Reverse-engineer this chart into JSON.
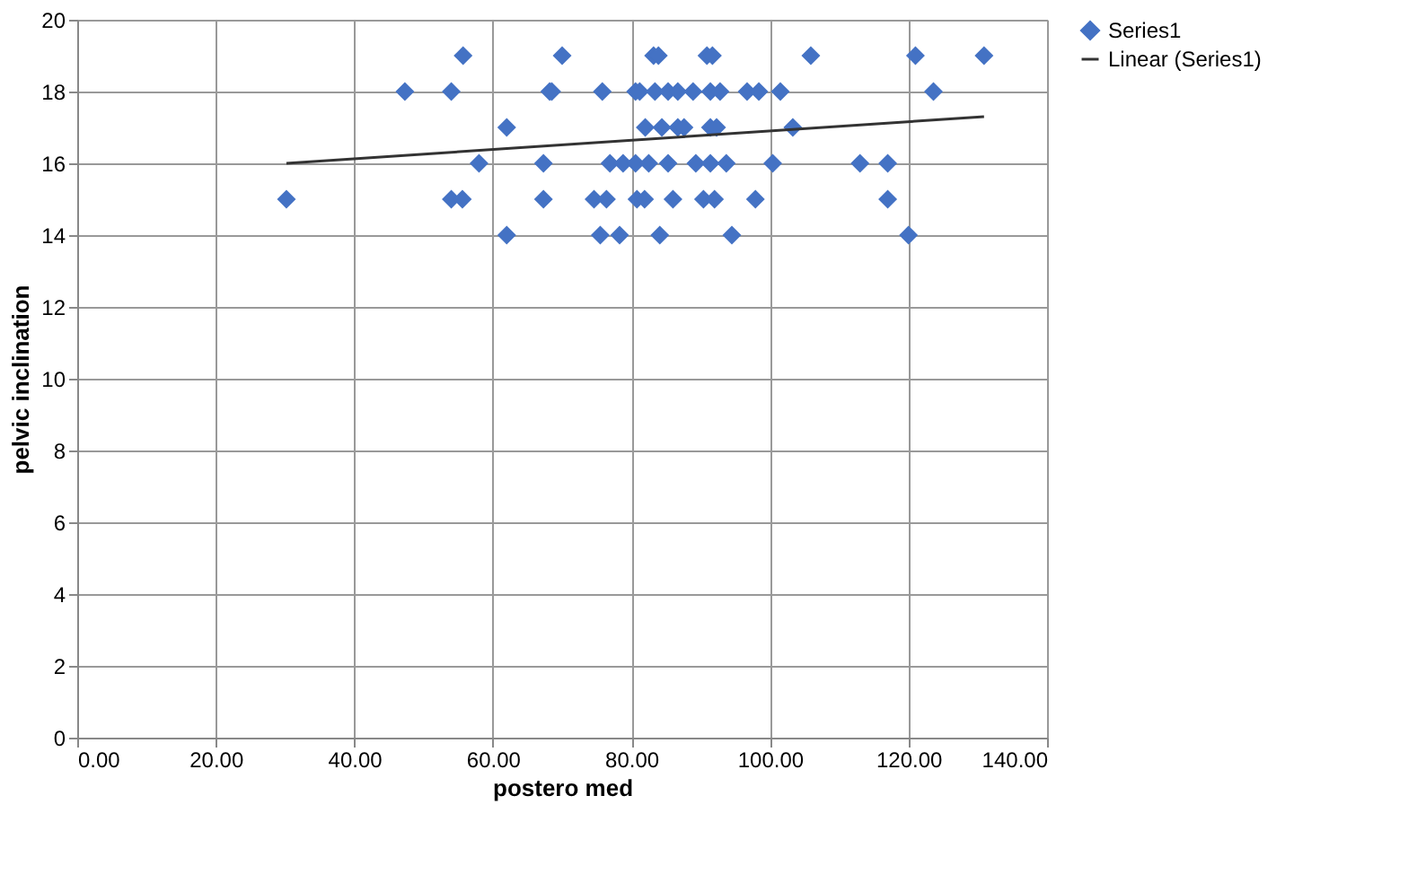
{
  "chart_data": {
    "type": "scatter",
    "xlabel": "postero med",
    "ylabel": "pelvic inclination",
    "xlim": [
      0,
      140
    ],
    "ylim": [
      0,
      20
    ],
    "xticks": [
      {
        "value": 0,
        "label": "0.00"
      },
      {
        "value": 20,
        "label": "20.00"
      },
      {
        "value": 40,
        "label": "40.00"
      },
      {
        "value": 60,
        "label": "60.00"
      },
      {
        "value": 80,
        "label": "80.00"
      },
      {
        "value": 100,
        "label": "100.00"
      },
      {
        "value": 120,
        "label": "120.00"
      },
      {
        "value": 140,
        "label": "140.00"
      }
    ],
    "yticks": [
      0,
      2,
      4,
      6,
      8,
      10,
      12,
      14,
      16,
      18,
      20
    ],
    "grid": true,
    "legend": "right",
    "series": [
      {
        "name": "Series1",
        "type": "scatter",
        "marker": "diamond",
        "color": "#4472c4",
        "x": [
          55.7,
          70,
          83.2,
          83.9,
          90.9,
          91.7,
          105.9,
          121,
          130.9,
          47.3,
          54,
          68.2,
          68.5,
          75.8,
          80.6,
          81.2,
          83.4,
          85.3,
          86.7,
          88.9,
          91.4,
          92.8,
          96.7,
          98.4,
          101.5,
          123.6,
          62,
          82,
          84.4,
          86.7,
          87.6,
          91.4,
          92.3,
          103.3,
          58,
          67.3,
          76.9,
          78.8,
          80.6,
          82.5,
          85.3,
          89.3,
          91.4,
          93.7,
          100.4,
          113,
          117,
          30.2,
          54,
          55.6,
          67.3,
          74.6,
          76.4,
          80.8,
          81.9,
          86,
          90.4,
          92,
          97.9,
          117,
          62,
          75.5,
          78.3,
          84.1,
          94.5,
          120
        ],
        "values": [
          19,
          19,
          19,
          19,
          19,
          19,
          19,
          19,
          19,
          18,
          18,
          18,
          18,
          18,
          18,
          18,
          18,
          18,
          18,
          18,
          18,
          18,
          18,
          18,
          18,
          18,
          17,
          17,
          17,
          17,
          17,
          17,
          17,
          17,
          16,
          16,
          16,
          16,
          16,
          16,
          16,
          16,
          16,
          16,
          16,
          16,
          16,
          15,
          15,
          15,
          15,
          15,
          15,
          15,
          15,
          15,
          15,
          15,
          15,
          15,
          14,
          14,
          14,
          14,
          14,
          14
        ]
      },
      {
        "name": "Linear (Series1)",
        "type": "line",
        "marker": "none",
        "line_style": "solid",
        "color": "#333333",
        "x": [
          30.2,
          130.9
        ],
        "values": [
          16.0,
          17.3
        ]
      }
    ]
  }
}
